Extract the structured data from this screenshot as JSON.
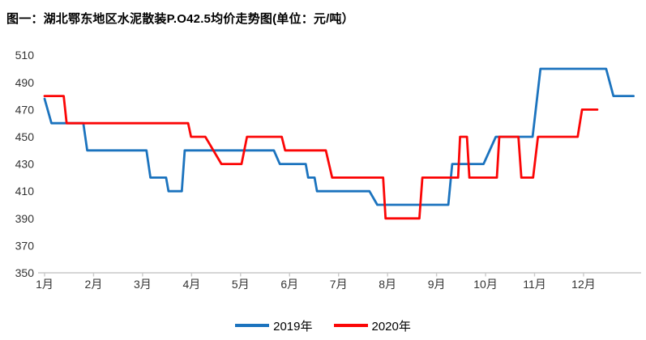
{
  "title": "图一：湖北鄂东地区水泥散装P.O42.5均价走势图(单位：元/吨）",
  "legend": [
    {
      "label": "2019年",
      "color": "#1B73BE"
    },
    {
      "label": "2020年",
      "color": "#FB0606"
    }
  ],
  "chart_data": {
    "type": "line",
    "title": "图一：湖北鄂东地区水泥散装P.O42.5均价走势图",
    "unit": "元/吨",
    "grid": false,
    "legend_position": "bottom",
    "x_axis": {
      "labels": [
        "1月",
        "2月",
        "3月",
        "4月",
        "5月",
        "6月",
        "7月",
        "8月",
        "9月",
        "10月",
        "11月",
        "12月"
      ],
      "note": "weekly data; series x-coordinate is month position (1 = 1月 tick, fractional = weeks within month)"
    },
    "y_axis": {
      "min": 350,
      "max": 510,
      "step": 20,
      "ticks": [
        510,
        490,
        470,
        450,
        430,
        410,
        390,
        370,
        350
      ]
    },
    "axis_color": "#c9c9c9",
    "tick_label_color": "#333333",
    "series": [
      {
        "name": "2019年",
        "color": "#1B73BE",
        "points": [
          [
            1.0,
            478
          ],
          [
            1.14,
            460
          ],
          [
            1.79,
            460
          ],
          [
            1.87,
            440
          ],
          [
            3.08,
            440
          ],
          [
            3.16,
            420
          ],
          [
            3.48,
            420
          ],
          [
            3.53,
            410
          ],
          [
            3.8,
            410
          ],
          [
            3.86,
            440
          ],
          [
            5.68,
            440
          ],
          [
            5.8,
            430
          ],
          [
            6.33,
            430
          ],
          [
            6.38,
            420
          ],
          [
            6.51,
            420
          ],
          [
            6.56,
            410
          ],
          [
            7.63,
            410
          ],
          [
            7.79,
            400
          ],
          [
            9.24,
            400
          ],
          [
            9.32,
            430
          ],
          [
            9.96,
            430
          ],
          [
            10.21,
            450
          ],
          [
            10.96,
            450
          ],
          [
            11.12,
            500
          ],
          [
            12.46,
            500
          ],
          [
            12.61,
            480
          ],
          [
            13.02,
            480
          ]
        ]
      },
      {
        "name": "2020年",
        "color": "#FB0606",
        "points": [
          [
            1.0,
            480
          ],
          [
            1.39,
            480
          ],
          [
            1.45,
            460
          ],
          [
            3.93,
            460
          ],
          [
            3.99,
            450
          ],
          [
            4.28,
            450
          ],
          [
            4.61,
            430
          ],
          [
            5.02,
            430
          ],
          [
            5.13,
            450
          ],
          [
            5.84,
            450
          ],
          [
            5.91,
            440
          ],
          [
            6.74,
            440
          ],
          [
            6.87,
            420
          ],
          [
            7.91,
            420
          ],
          [
            7.96,
            390
          ],
          [
            8.65,
            390
          ],
          [
            8.71,
            420
          ],
          [
            9.44,
            420
          ],
          [
            9.48,
            450
          ],
          [
            9.62,
            450
          ],
          [
            9.67,
            420
          ],
          [
            10.23,
            420
          ],
          [
            10.28,
            450
          ],
          [
            10.67,
            450
          ],
          [
            10.73,
            420
          ],
          [
            10.97,
            420
          ],
          [
            11.07,
            450
          ],
          [
            11.88,
            450
          ],
          [
            11.97,
            470
          ],
          [
            12.28,
            470
          ]
        ]
      }
    ]
  }
}
